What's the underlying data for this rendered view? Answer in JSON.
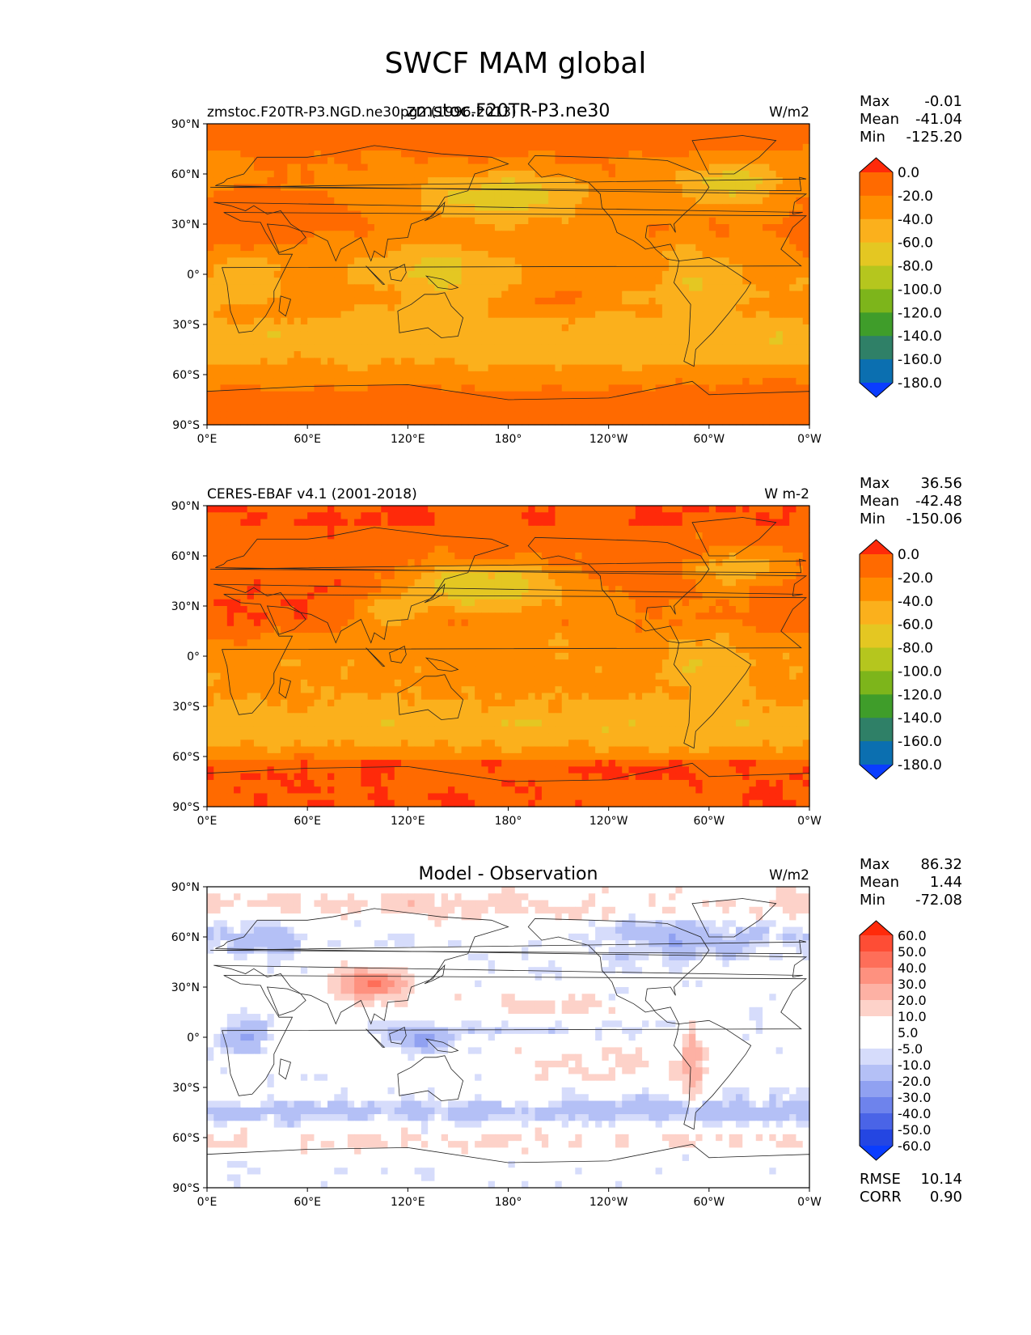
{
  "figure": {
    "title": "SWCF MAM global"
  },
  "colors": {
    "abs_levels": [
      "#ff2a0a",
      "#ff6a00",
      "#ff8c00",
      "#fbb01c",
      "#e4c722",
      "#b5c61e",
      "#7db51b",
      "#3f9d2a",
      "#2f8067",
      "#0b6fb0",
      "#0a3dff"
    ],
    "diff_levels": [
      "#ff2a0a",
      "#fe4d35",
      "#fe6e59",
      "#fe917f",
      "#fdb1a4",
      "#fdd2c9",
      "#ffffff",
      "#ffffff",
      "#d6dcfb",
      "#b4c0f6",
      "#90a1f1",
      "#6e83ec",
      "#4a64e7",
      "#2446e2",
      "#0a3dff"
    ],
    "land": "#222222"
  },
  "chart_data": [
    {
      "type": "heatmap",
      "id": "model",
      "title_left": "zmstoc.F20TR-P3.NGD.ne30pg2.(1996-2013)",
      "title_center": "zmstoc.F20TR-P3.ne30",
      "title_right": "W/m2",
      "x_ticks": [
        "0°E",
        "60°E",
        "120°E",
        "180°",
        "120°W",
        "60°W",
        "0°W"
      ],
      "y_ticks": [
        "90°N",
        "60°N",
        "30°N",
        "0°",
        "30°S",
        "60°S",
        "90°S"
      ],
      "xlim": [
        0,
        360
      ],
      "ylim": [
        -90,
        90
      ],
      "stats": [
        {
          "label": "Max",
          "value": "-0.01"
        },
        {
          "label": "Mean",
          "value": "-41.04"
        },
        {
          "label": "Min",
          "value": "-125.20"
        }
      ],
      "colorbar_labels": [
        "0.0",
        "-20.0",
        "-40.0",
        "-60.0",
        "-80.0",
        "-100.0",
        "-120.0",
        "-140.0",
        "-160.0",
        "-180.0"
      ]
    },
    {
      "type": "heatmap",
      "id": "obs",
      "title_left": "CERES-EBAF v4.1 (2001-2018)",
      "title_center": "",
      "title_right": "W m-2",
      "x_ticks": [
        "0°E",
        "60°E",
        "120°E",
        "180°",
        "120°W",
        "60°W",
        "0°W"
      ],
      "y_ticks": [
        "90°N",
        "60°N",
        "30°N",
        "0°",
        "30°S",
        "60°S",
        "90°S"
      ],
      "xlim": [
        0,
        360
      ],
      "ylim": [
        -90,
        90
      ],
      "stats": [
        {
          "label": "Max",
          "value": "36.56"
        },
        {
          "label": "Mean",
          "value": "-42.48"
        },
        {
          "label": "Min",
          "value": "-150.06"
        }
      ],
      "colorbar_labels": [
        "0.0",
        "-20.0",
        "-40.0",
        "-60.0",
        "-80.0",
        "-100.0",
        "-120.0",
        "-140.0",
        "-160.0",
        "-180.0"
      ]
    },
    {
      "type": "heatmap",
      "id": "diff",
      "title_left": "",
      "title_center": "Model - Observation",
      "title_right": "W/m2",
      "x_ticks": [
        "0°E",
        "60°E",
        "120°E",
        "180°",
        "120°W",
        "60°W",
        "0°W"
      ],
      "y_ticks": [
        "90°N",
        "60°N",
        "30°N",
        "0°",
        "30°S",
        "60°S",
        "90°S"
      ],
      "xlim": [
        0,
        360
      ],
      "ylim": [
        -90,
        90
      ],
      "stats": [
        {
          "label": "Max",
          "value": "86.32"
        },
        {
          "label": "Mean",
          "value": "1.44"
        },
        {
          "label": "Min",
          "value": "-72.08"
        }
      ],
      "colorbar_labels": [
        "60.0",
        "50.0",
        "40.0",
        "30.0",
        "20.0",
        "10.0",
        "5.0",
        "-5.0",
        "-10.0",
        "-20.0",
        "-30.0",
        "-40.0",
        "-50.0",
        "-60.0"
      ],
      "extra_stats": [
        {
          "label": "RMSE",
          "value": "10.14"
        },
        {
          "label": "CORR",
          "value": "0.90"
        }
      ]
    }
  ]
}
